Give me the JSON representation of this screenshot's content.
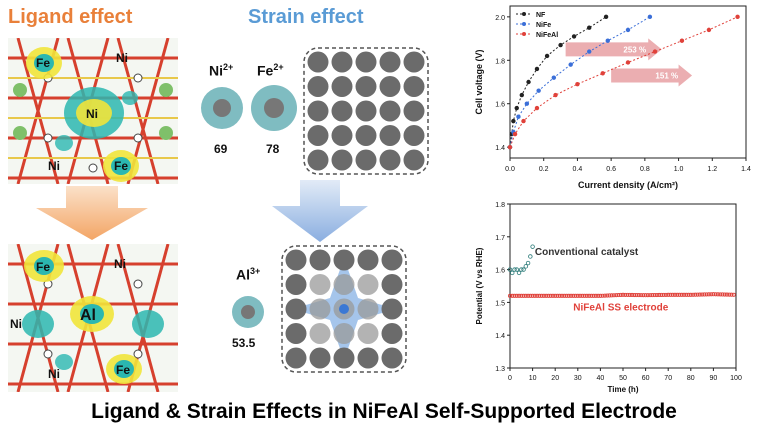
{
  "ligand": {
    "title": "Ligand effect",
    "top_atoms": [
      "Fe",
      "Ni",
      "Ni",
      "Ni",
      "Fe"
    ],
    "bottom_atoms": [
      "Fe",
      "Ni",
      "Ni",
      "Al",
      "Ni",
      "Fe"
    ]
  },
  "strain": {
    "title": "Strain effect",
    "ni_label": "Ni",
    "ni_charge": "2+",
    "ni_radius": "69",
    "fe_label": "Fe",
    "fe_charge": "2+",
    "fe_radius": "78",
    "al_label": "Al",
    "al_charge": "3+",
    "al_radius": "53.5"
  },
  "bottom_title": "Ligand & Strain Effects in NiFeAl Self-Supported Electrode",
  "chart_data": [
    {
      "type": "scatter",
      "xlabel": "Current density (A/cm²)",
      "ylabel": "Cell voltage (V)",
      "xlim": [
        0,
        1.4
      ],
      "ylim": [
        1.35,
        2.05
      ],
      "xticks": [
        "0.0",
        "0.2",
        "0.4",
        "0.6",
        "0.8",
        "1.0",
        "1.2",
        "1.4"
      ],
      "yticks": [
        "1.4",
        "1.6",
        "1.8",
        "2.0"
      ],
      "legend_position": "top-left",
      "series": [
        {
          "name": "NF",
          "color": "#222222",
          "x": [
            0.0,
            0.01,
            0.02,
            0.04,
            0.07,
            0.11,
            0.16,
            0.22,
            0.3,
            0.38,
            0.47,
            0.57
          ],
          "y": [
            1.4,
            1.46,
            1.52,
            1.58,
            1.64,
            1.7,
            1.76,
            1.82,
            1.87,
            1.91,
            1.95,
            2.0
          ]
        },
        {
          "name": "NiFe",
          "color": "#3b6fd8",
          "x": [
            0.0,
            0.02,
            0.05,
            0.1,
            0.17,
            0.26,
            0.36,
            0.47,
            0.58,
            0.7,
            0.83
          ],
          "y": [
            1.4,
            1.47,
            1.54,
            1.6,
            1.66,
            1.72,
            1.78,
            1.84,
            1.89,
            1.94,
            2.0
          ]
        },
        {
          "name": "NiFeAl",
          "color": "#e0413a",
          "x": [
            0.0,
            0.03,
            0.08,
            0.16,
            0.27,
            0.4,
            0.55,
            0.7,
            0.86,
            1.02,
            1.18,
            1.35
          ],
          "y": [
            1.4,
            1.46,
            1.52,
            1.58,
            1.64,
            1.69,
            1.74,
            1.79,
            1.84,
            1.89,
            1.94,
            2.0
          ]
        }
      ],
      "annotations": [
        "253 %",
        "151 %"
      ]
    },
    {
      "type": "line",
      "xlabel": "Time (h)",
      "ylabel": "Potential (V vs RHE)",
      "xlim": [
        0,
        100
      ],
      "ylim": [
        1.3,
        1.8
      ],
      "xticks": [
        "0",
        "10",
        "20",
        "30",
        "40",
        "50",
        "60",
        "70",
        "80",
        "90",
        "100"
      ],
      "yticks": [
        "1.3",
        "1.4",
        "1.5",
        "1.6",
        "1.7",
        "1.8"
      ],
      "series": [
        {
          "name": "Conventional catalyst",
          "color": "#2a7a78",
          "x": [
            0,
            1,
            2,
            3,
            4,
            5,
            6,
            7,
            8,
            9,
            10
          ],
          "y": [
            1.6,
            1.59,
            1.6,
            1.6,
            1.59,
            1.6,
            1.6,
            1.61,
            1.62,
            1.64,
            1.67
          ]
        },
        {
          "name": "NiFeAl SS electrode",
          "color": "#e0413a",
          "x": [
            0,
            10,
            20,
            30,
            40,
            50,
            60,
            70,
            80,
            90,
            100
          ],
          "y": [
            1.52,
            1.52,
            1.52,
            1.52,
            1.52,
            1.523,
            1.522,
            1.523,
            1.523,
            1.525,
            1.523
          ]
        }
      ]
    }
  ]
}
